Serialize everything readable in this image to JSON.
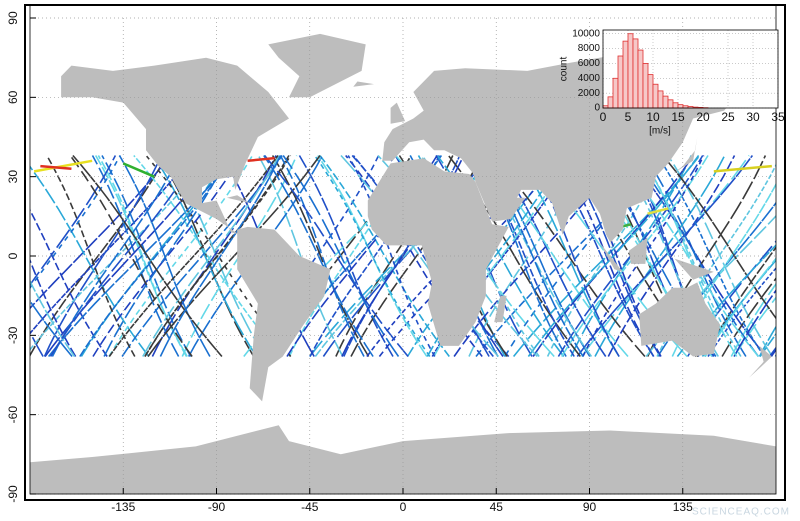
{
  "chart_data": [
    {
      "type": "map",
      "xlim": [
        -180,
        180
      ],
      "ylim": [
        -90,
        90
      ],
      "xticks": [
        -135,
        -90,
        -45,
        0,
        45,
        90,
        135
      ],
      "yticks": [
        90,
        60,
        30,
        0,
        -30,
        -60,
        -90
      ],
      "grid": true
    },
    {
      "type": "histogram",
      "xlabel": "[m/s]",
      "ylabel": "count",
      "bins": [
        0,
        1,
        2,
        3,
        4,
        5,
        6,
        7,
        8,
        9,
        10,
        11,
        12,
        13,
        14,
        15,
        16,
        17,
        18,
        19,
        20,
        21
      ],
      "values": [
        300,
        1500,
        4000,
        7000,
        9000,
        10000,
        9300,
        7800,
        6000,
        4500,
        3200,
        2300,
        1600,
        1100,
        700,
        450,
        300,
        200,
        120,
        80,
        40
      ],
      "color": "#e03030",
      "xlim": [
        0,
        35
      ],
      "ylim": [
        0,
        10500
      ],
      "xticks": [
        0,
        5,
        10,
        15,
        20,
        25,
        30,
        35
      ],
      "yticks": [
        0,
        2000,
        4000,
        6000,
        8000,
        10000
      ],
      "grid": true
    }
  ],
  "watermark": "SCIENCEAQ.COM"
}
